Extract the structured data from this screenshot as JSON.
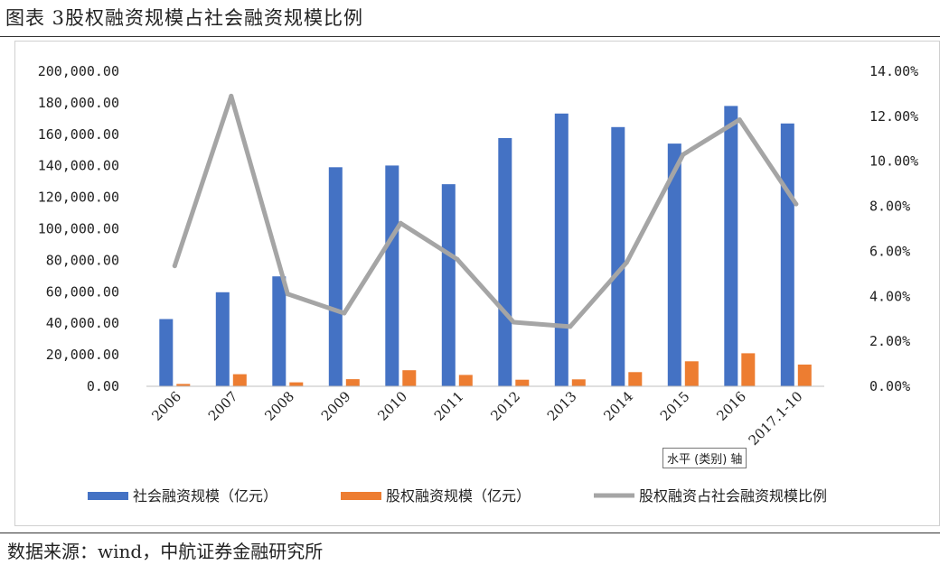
{
  "title": "图表 3股权融资规模占社会融资规模比例",
  "source": "数据来源：wind，中航证券金融研究所",
  "tooltip": "水平 (类别) 轴",
  "chart_data": {
    "type": "bar+line",
    "categories": [
      "2006",
      "2007",
      "2008",
      "2009",
      "2010",
      "2011",
      "2012",
      "2013",
      "2014",
      "2015",
      "2016",
      "2017.1-10"
    ],
    "series": [
      {
        "name": "社会融资规模（亿元）",
        "type": "bar",
        "axis": "left",
        "color": "#4472C4",
        "values": [
          42700,
          59700,
          69800,
          139100,
          140200,
          128300,
          157600,
          173200,
          164600,
          154100,
          178000,
          166900
        ]
      },
      {
        "name": "股权融资规模（亿元）",
        "type": "bar",
        "axis": "left",
        "color": "#ED7D31",
        "values": [
          1500,
          7700,
          2500,
          4500,
          10200,
          7200,
          4200,
          4400,
          9000,
          15900,
          21000,
          13800
        ]
      },
      {
        "name": "股权融资占社会融资规模比例",
        "type": "line",
        "axis": "right",
        "color": "#A5A5A5",
        "values": [
          0.0535,
          0.129,
          0.041,
          0.0325,
          0.0725,
          0.0565,
          0.0285,
          0.0265,
          0.055,
          0.103,
          0.1185,
          0.081
        ]
      }
    ],
    "yleft": {
      "min": 0,
      "max": 200000,
      "step": 20000,
      "ticks": [
        "0.00",
        "20,000.00",
        "40,000.00",
        "60,000.00",
        "80,000.00",
        "100,000.00",
        "120,000.00",
        "140,000.00",
        "160,000.00",
        "180,000.00",
        "200,000.00"
      ]
    },
    "yright": {
      "min": 0,
      "max": 0.14,
      "step": 0.02,
      "ticks": [
        "0.00%",
        "2.00%",
        "4.00%",
        "6.00%",
        "8.00%",
        "10.00%",
        "12.00%",
        "14.00%"
      ]
    },
    "grid": false,
    "legend_position": "bottom"
  }
}
